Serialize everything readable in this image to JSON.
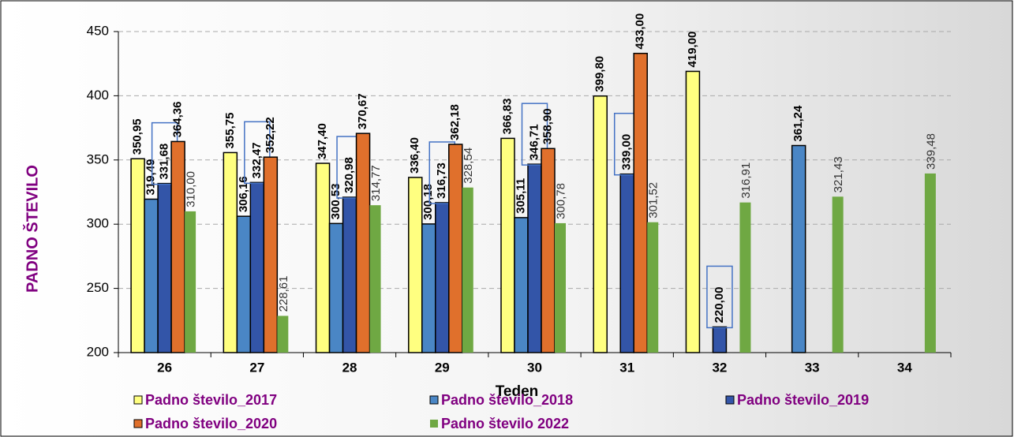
{
  "chart_data": {
    "type": "bar",
    "y_label": "PADNO ŠTEVILO",
    "x_label": "Teden",
    "categories": [
      "26",
      "27",
      "28",
      "29",
      "30",
      "31",
      "32",
      "33",
      "34"
    ],
    "ylim": [
      200,
      450
    ],
    "yticks": [
      200,
      250,
      300,
      350,
      400,
      450
    ],
    "grid": true,
    "series": [
      {
        "name": "Padno število_2017",
        "color": "#ffff80",
        "values": [
          350.95,
          355.75,
          347.4,
          336.4,
          366.83,
          399.8,
          419.0,
          null,
          null
        ],
        "value_labels": [
          "350,95",
          "355,75",
          "347,40",
          "336,40",
          "366,83",
          "399,80",
          "419,00",
          null,
          null
        ]
      },
      {
        "name": "Padno število_2018",
        "color": "#4a86c5",
        "values": [
          319.49,
          306.16,
          300.53,
          300.18,
          305.11,
          null,
          null,
          361.24,
          null
        ],
        "value_labels": [
          "319,49",
          "306,16",
          "300,53",
          "300,18",
          "305,11",
          null,
          null,
          "361,24",
          null
        ]
      },
      {
        "name": "Padno število_2019",
        "color": "#3355a8",
        "values": [
          331.68,
          332.47,
          320.98,
          316.73,
          346.71,
          339.0,
          220.0,
          null,
          null
        ],
        "value_labels": [
          "331,68",
          "332,47",
          "320,98",
          "316,73",
          "346,71",
          "339,00",
          "220,00",
          null,
          null
        ]
      },
      {
        "name": "Padno število_2020",
        "color": "#e0702c",
        "values": [
          364.36,
          352.22,
          370.67,
          362.18,
          358.9,
          433.0,
          null,
          null,
          null
        ],
        "value_labels": [
          "364,36",
          "352,22",
          "370,67",
          "362,18",
          "358,90",
          "433,00",
          null,
          null,
          null
        ]
      },
      {
        "name": "Padno število 2022",
        "color": "#6fa843",
        "values": [
          310.0,
          228.61,
          314.77,
          328.54,
          300.78,
          301.52,
          316.91,
          321.43,
          339.48
        ],
        "value_labels": [
          "310,00",
          "228,61",
          "314,77",
          "328,54",
          "300,78",
          "301,52",
          "316,91",
          "321,43",
          "339,48"
        ]
      }
    ]
  }
}
